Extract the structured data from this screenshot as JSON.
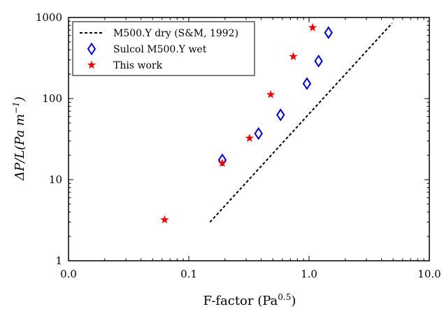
{
  "chart_data": {
    "type": "scatter",
    "xscale": "log",
    "yscale": "log",
    "xlim": [
      0.01,
      10.0
    ],
    "ylim": [
      1,
      1000
    ],
    "grid": false,
    "legend_position": "top-left",
    "xlabel": "F-factor (Pa",
    "xlabel_sup": "0.5",
    "xlabel_end": ")",
    "ylabel": "ΔP/L(Pa m",
    "ylabel_sup": "−1",
    "ylabel_end": ")",
    "x_ticks": [
      {
        "value": 0.01,
        "label": "0.0"
      },
      {
        "value": 0.1,
        "label": "0.1"
      },
      {
        "value": 1.0,
        "label": "1.0"
      },
      {
        "value": 10.0,
        "label": "10.0"
      }
    ],
    "y_ticks": [
      {
        "value": 1,
        "label": "1"
      },
      {
        "value": 10,
        "label": "10"
      },
      {
        "value": 100,
        "label": "100"
      },
      {
        "value": 1000,
        "label": "1000"
      }
    ],
    "series": [
      {
        "name": "M500.Y dry (S&M, 1992)",
        "kind": "line",
        "style": "dashed",
        "color": "#000000",
        "points": [
          [
            0.15,
            3.0
          ],
          [
            4.9,
            850
          ]
        ]
      },
      {
        "name": "Sulcol M500.Y wet",
        "kind": "marker",
        "marker": "diamond",
        "color": "#0000cc",
        "points": [
          [
            0.19,
            17.5
          ],
          [
            0.38,
            37
          ],
          [
            0.58,
            63
          ],
          [
            0.96,
            153
          ],
          [
            1.2,
            290
          ],
          [
            1.45,
            650
          ]
        ]
      },
      {
        "name": "This work",
        "kind": "marker",
        "marker": "star",
        "color": "#ee0000",
        "points": [
          [
            0.063,
            3.2
          ],
          [
            0.19,
            16
          ],
          [
            0.32,
            32.5
          ],
          [
            0.48,
            112
          ],
          [
            0.74,
            330
          ],
          [
            1.07,
            750
          ]
        ]
      }
    ]
  }
}
